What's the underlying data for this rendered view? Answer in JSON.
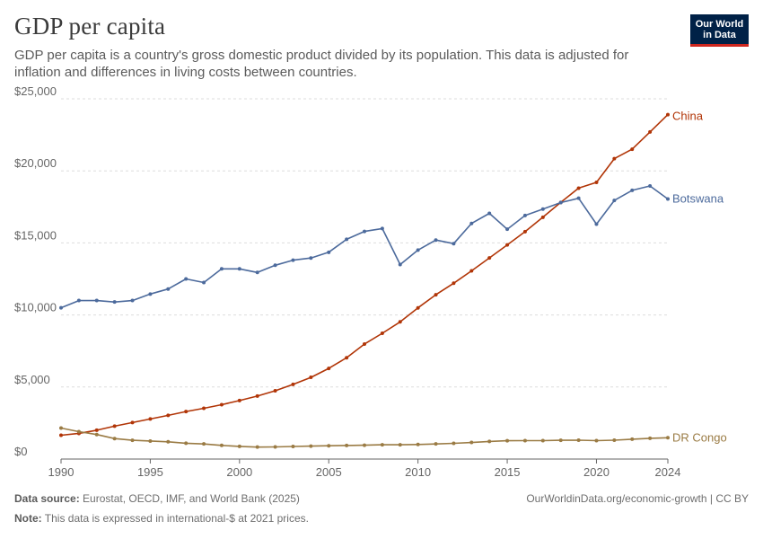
{
  "header": {
    "title": "GDP per capita",
    "subtitle": "GDP per capita is a country's gross domestic product divided by its population. This data is adjusted for inflation and differences in living costs between countries.",
    "logo_line1": "Our World",
    "logo_line2": "in Data"
  },
  "footer": {
    "source_label": "Data source:",
    "source_text": "Eurostat, OECD, IMF, and World Bank (2025)",
    "note_label": "Note:",
    "note_text": "This data is expressed in international-$ at 2021 prices.",
    "credit": "OurWorldinData.org/economic-growth | CC BY"
  },
  "colors": {
    "china": "#b13507",
    "botswana": "#4c6a9c",
    "drcongo": "#9a7b44",
    "grid": "#dddddd",
    "axis": "#666666",
    "logo_bg": "#002147",
    "logo_accent": "#ce261e"
  },
  "chart_data": {
    "type": "line",
    "title": "GDP per capita",
    "xlabel": "",
    "ylabel": "",
    "xlim": [
      1990,
      2024
    ],
    "ylim": [
      0,
      25000
    ],
    "y_ticks": [
      0,
      5000,
      10000,
      15000,
      20000,
      25000
    ],
    "y_tick_labels": [
      "$0",
      "$5,000",
      "$10,000",
      "$15,000",
      "$20,000",
      "$25,000"
    ],
    "x_ticks": [
      1990,
      1995,
      2000,
      2005,
      2010,
      2015,
      2020,
      2024
    ],
    "x_tick_labels": [
      "1990",
      "1995",
      "2000",
      "2005",
      "2010",
      "2015",
      "2020",
      "2024"
    ],
    "grid": "horizontal dashed",
    "legend": "labels at line ends (right)",
    "x": [
      1990,
      1991,
      1992,
      1993,
      1994,
      1995,
      1996,
      1997,
      1998,
      1999,
      2000,
      2001,
      2002,
      2003,
      2004,
      2005,
      2006,
      2007,
      2008,
      2009,
      2010,
      2011,
      2012,
      2013,
      2014,
      2015,
      2016,
      2017,
      2018,
      2019,
      2020,
      2021,
      2022,
      2023,
      2024
    ],
    "series": [
      {
        "name": "China",
        "color": "#b13507",
        "values": [
          1650,
          1780,
          2000,
          2280,
          2530,
          2780,
          3030,
          3300,
          3520,
          3770,
          4060,
          4370,
          4740,
          5180,
          5670,
          6290,
          7030,
          7980,
          8730,
          9520,
          10490,
          11400,
          12200,
          13060,
          13960,
          14860,
          15780,
          16780,
          17810,
          18800,
          19200,
          20850,
          21500,
          22700,
          23900
        ]
      },
      {
        "name": "Botswana",
        "color": "#4c6a9c",
        "values": [
          10500,
          11000,
          11000,
          10900,
          11000,
          11450,
          11800,
          12500,
          12250,
          13200,
          13200,
          12950,
          13450,
          13800,
          13950,
          14350,
          15250,
          15800,
          16000,
          13500,
          14500,
          15200,
          14950,
          16350,
          17050,
          15950,
          16900,
          17350,
          17800,
          18100,
          16300,
          17950,
          18650,
          18950,
          18050
        ]
      },
      {
        "name": "DR Congo",
        "color": "#9a7b44",
        "values": [
          2150,
          1900,
          1700,
          1420,
          1300,
          1250,
          1200,
          1100,
          1050,
          950,
          880,
          830,
          840,
          870,
          900,
          920,
          940,
          960,
          990,
          990,
          1010,
          1050,
          1090,
          1150,
          1220,
          1270,
          1280,
          1280,
          1300,
          1310,
          1280,
          1310,
          1380,
          1440,
          1480
        ]
      }
    ]
  }
}
